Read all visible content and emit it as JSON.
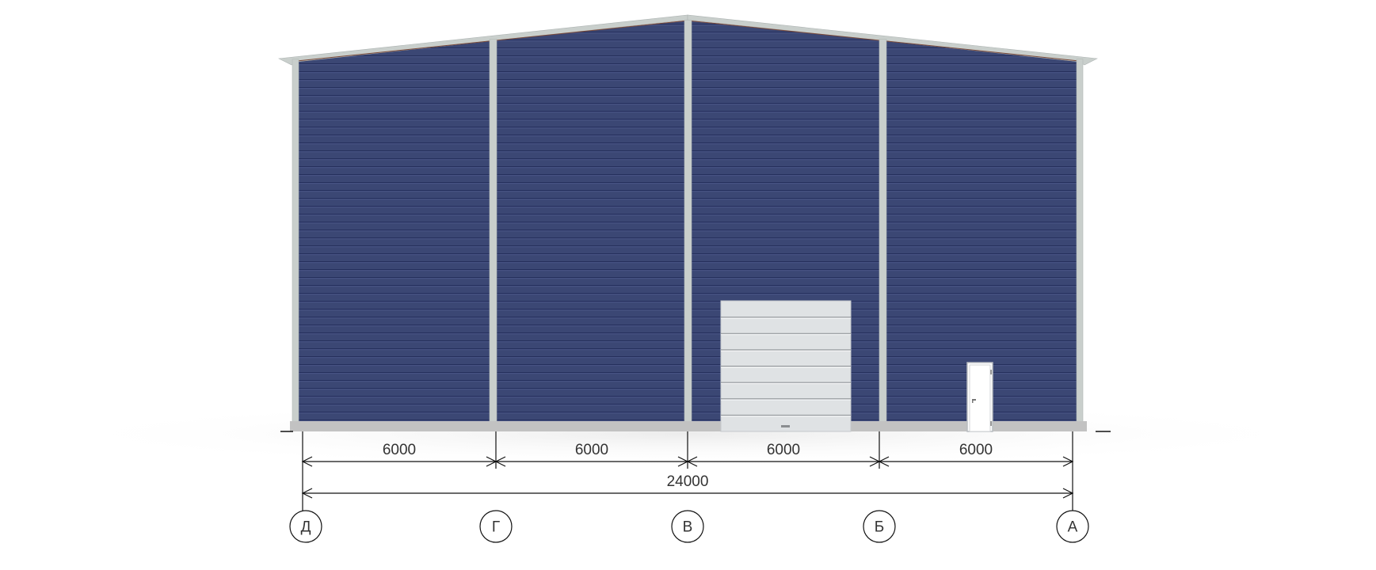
{
  "colors": {
    "cladding": "#3b4774",
    "cladding_seam": "#252f5c",
    "frame": "#c9cfcc",
    "plinth": "#c2c2c2",
    "door": "#dfe2e4",
    "line": "#111111"
  },
  "axes": [
    "Д",
    "Г",
    "В",
    "Б",
    "А"
  ],
  "spans": [
    "6000",
    "6000",
    "6000",
    "6000"
  ],
  "overall": "24000",
  "openings": {
    "sectional_door_panels": 8,
    "personnel_door": 1
  }
}
